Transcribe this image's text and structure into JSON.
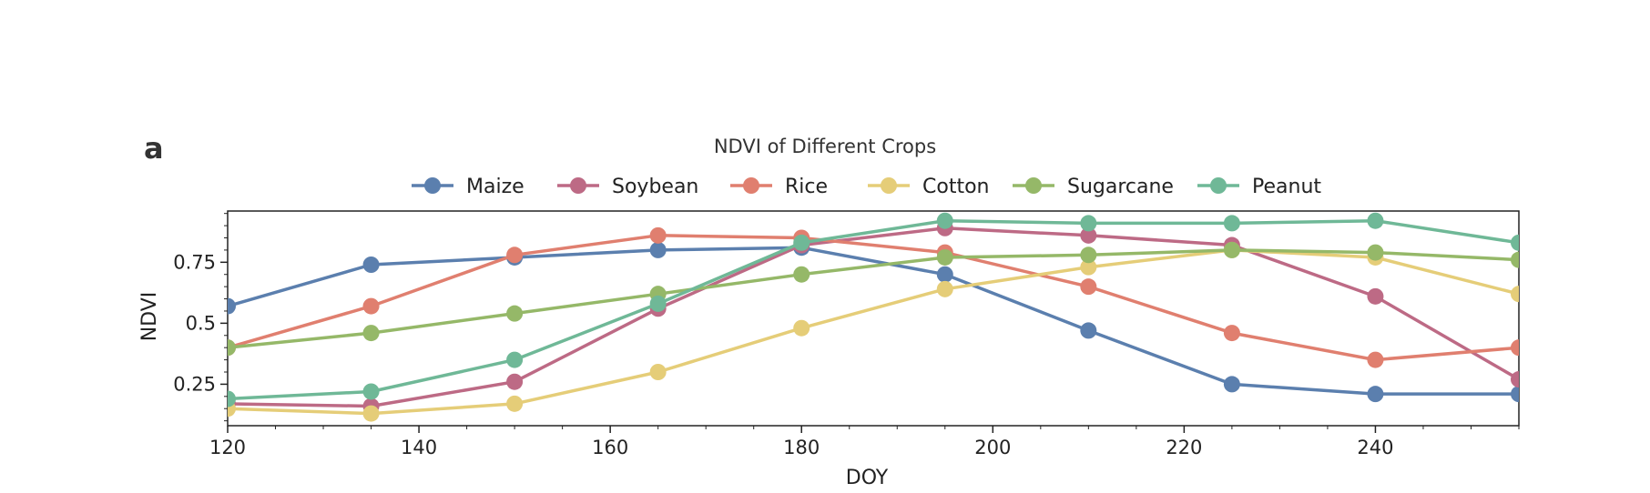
{
  "panel_label": "a",
  "chart_data": {
    "type": "line",
    "title": "NDVI of Different Crops",
    "xlabel": "DOY",
    "ylabel": "NDVI",
    "xlim": [
      120,
      255
    ],
    "ylim": [
      0.08,
      0.96
    ],
    "x_ticks": [
      120,
      140,
      160,
      180,
      200,
      220,
      240
    ],
    "x_tick_labels": [
      "120",
      "140",
      "160",
      "180",
      "200",
      "220",
      "240"
    ],
    "y_ticks": [
      0.25,
      0.5,
      0.75
    ],
    "y_tick_labels": [
      "0.25",
      "0.5",
      "0.75"
    ],
    "legend_position": "top-center",
    "grid": false,
    "x": [
      120,
      135,
      150,
      165,
      180,
      195,
      210,
      225,
      240,
      255
    ],
    "series": [
      {
        "name": "Maize",
        "color": "#5b7fae",
        "values": [
          0.57,
          0.74,
          0.77,
          0.8,
          0.81,
          0.7,
          0.47,
          0.25,
          0.21,
          0.21
        ]
      },
      {
        "name": "Soybean",
        "color": "#bd6a85",
        "values": [
          0.17,
          0.16,
          0.26,
          0.56,
          0.82,
          0.89,
          0.86,
          0.82,
          0.61,
          0.27
        ]
      },
      {
        "name": "Rice",
        "color": "#e07f6f",
        "values": [
          0.4,
          0.57,
          0.78,
          0.86,
          0.85,
          0.79,
          0.65,
          0.46,
          0.35,
          0.4
        ]
      },
      {
        "name": "Cotton",
        "color": "#e5cd78",
        "values": [
          0.15,
          0.13,
          0.17,
          0.3,
          0.48,
          0.64,
          0.73,
          0.8,
          0.77,
          0.62
        ]
      },
      {
        "name": "Sugarcane",
        "color": "#95b868",
        "values": [
          0.4,
          0.46,
          0.54,
          0.62,
          0.7,
          0.77,
          0.78,
          0.8,
          0.79,
          0.76
        ]
      },
      {
        "name": "Peanut",
        "color": "#6fb897",
        "values": [
          0.19,
          0.22,
          0.35,
          0.58,
          0.83,
          0.92,
          0.91,
          0.91,
          0.92,
          0.83
        ]
      }
    ]
  }
}
